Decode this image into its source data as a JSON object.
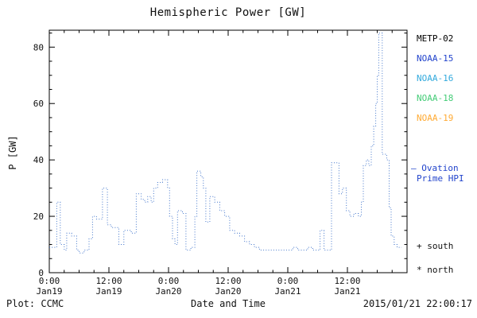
{
  "title": "Hemispheric Power [GW]",
  "axes": {
    "ylabel": "P [GW]",
    "xlabel": "Date and Time"
  },
  "footer": {
    "plot_credit": "Plot: CCMC",
    "timestamp": "2015/01/21 22:00:17"
  },
  "legend": {
    "satellites": [
      {
        "label": "METP-02",
        "color": "#000000"
      },
      {
        "label": "NOAA-15",
        "color": "#2244cc"
      },
      {
        "label": "NOAA-16",
        "color": "#33aadd"
      },
      {
        "label": "NOAA-18",
        "color": "#44cc77"
      },
      {
        "label": "NOAA-19",
        "color": "#ffaa33"
      }
    ],
    "line_marker": "—",
    "line_label_line1": "Ovation",
    "line_label_line2": "Prime HPI",
    "line_text_color": "#2244cc",
    "south": {
      "marker": "+",
      "label": "south",
      "color": "#000000"
    },
    "north": {
      "marker": "*",
      "label": "north",
      "color": "#000000"
    }
  },
  "chart_data": {
    "type": "line",
    "title": "Hemispheric Power [GW]",
    "xlabel": "Date and Time",
    "ylabel": "P [GW]",
    "series_name": "Ovation Prime HPI",
    "line_style": "dotted-step",
    "line_color": "#4477cc",
    "axis_color": "#000000",
    "grid": false,
    "xlim": [
      0,
      72
    ],
    "ylim": [
      0,
      86
    ],
    "x_unit": "hours from 2015 Jan19 00:00",
    "x_ticks": [
      {
        "h": 0,
        "time": "0:00",
        "date": "Jan19"
      },
      {
        "h": 12,
        "time": "12:00",
        "date": "Jan19"
      },
      {
        "h": 24,
        "time": "0:00",
        "date": "Jan20"
      },
      {
        "h": 36,
        "time": "12:00",
        "date": "Jan20"
      },
      {
        "h": 48,
        "time": "0:00",
        "date": "Jan21"
      },
      {
        "h": 60,
        "time": "12:00",
        "date": "Jan21"
      }
    ],
    "x_minor_step": 3,
    "y_ticks": [
      0,
      20,
      40,
      60,
      80
    ],
    "y_minor_step": 5,
    "points": [
      [
        0,
        9
      ],
      [
        1.5,
        25
      ],
      [
        2.2,
        10
      ],
      [
        3,
        8
      ],
      [
        3.5,
        14
      ],
      [
        4.5,
        13
      ],
      [
        5.5,
        8
      ],
      [
        6,
        7
      ],
      [
        7,
        8
      ],
      [
        8,
        12
      ],
      [
        8.7,
        20
      ],
      [
        9.5,
        19
      ],
      [
        10.7,
        30
      ],
      [
        11.7,
        17
      ],
      [
        12.5,
        16
      ],
      [
        14,
        10
      ],
      [
        15,
        15
      ],
      [
        16.5,
        14
      ],
      [
        17.5,
        28
      ],
      [
        18.5,
        26
      ],
      [
        19.2,
        25
      ],
      [
        19.8,
        27
      ],
      [
        20.5,
        25
      ],
      [
        21,
        30
      ],
      [
        21.8,
        32
      ],
      [
        22.8,
        33
      ],
      [
        23.8,
        30
      ],
      [
        24.2,
        20
      ],
      [
        24.8,
        12
      ],
      [
        25.3,
        10
      ],
      [
        25.8,
        22
      ],
      [
        26.8,
        21
      ],
      [
        27.5,
        8
      ],
      [
        28.5,
        9
      ],
      [
        29.3,
        20
      ],
      [
        29.7,
        36
      ],
      [
        30.5,
        34
      ],
      [
        31,
        30
      ],
      [
        31.5,
        18
      ],
      [
        32.3,
        27
      ],
      [
        33.3,
        25
      ],
      [
        34.3,
        22
      ],
      [
        35.3,
        20
      ],
      [
        36.3,
        15
      ],
      [
        37.3,
        14
      ],
      [
        38.3,
        13
      ],
      [
        39.3,
        11
      ],
      [
        40.3,
        10
      ],
      [
        41.3,
        9
      ],
      [
        42.3,
        8
      ],
      [
        49,
        9
      ],
      [
        50,
        8
      ],
      [
        52,
        9
      ],
      [
        53,
        8
      ],
      [
        54.5,
        15
      ],
      [
        55.3,
        8
      ],
      [
        56.8,
        39
      ],
      [
        58.3,
        28
      ],
      [
        59,
        30
      ],
      [
        59.8,
        22
      ],
      [
        60.5,
        20
      ],
      [
        61.3,
        21
      ],
      [
        62.2,
        20
      ],
      [
        62.8,
        25
      ],
      [
        63.2,
        38
      ],
      [
        63.8,
        40
      ],
      [
        64.3,
        38
      ],
      [
        64.8,
        45
      ],
      [
        65.3,
        52
      ],
      [
        65.7,
        60
      ],
      [
        66,
        70
      ],
      [
        66.3,
        85
      ],
      [
        67,
        42
      ],
      [
        67.9,
        40
      ],
      [
        68.4,
        23
      ],
      [
        68.8,
        13
      ],
      [
        69.4,
        10
      ],
      [
        70,
        9
      ],
      [
        70.9,
        9
      ]
    ]
  }
}
